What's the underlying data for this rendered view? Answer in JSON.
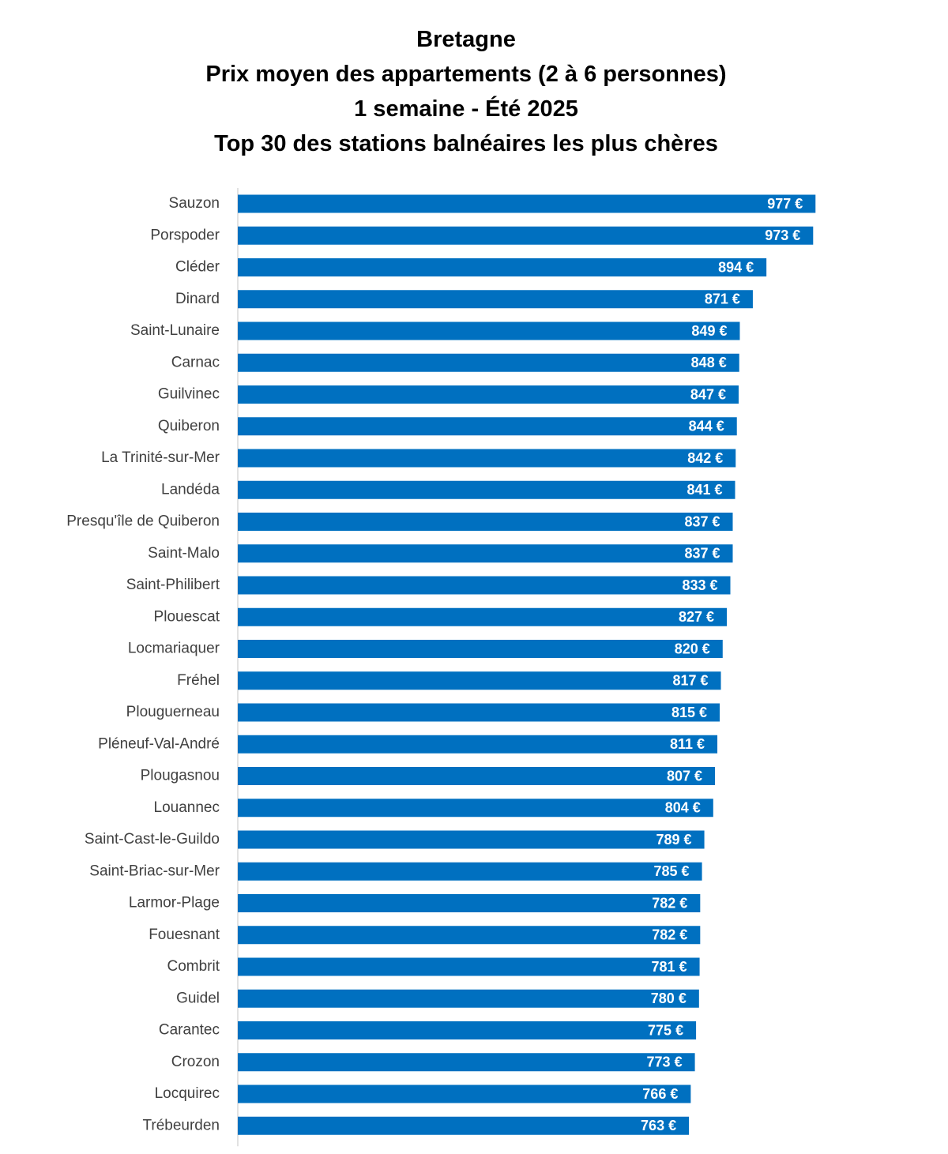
{
  "chart_data": {
    "type": "bar",
    "orientation": "horizontal",
    "title_lines": [
      "Bretagne",
      "Prix moyen des appartements (2 à 6 personnes)",
      "1 semaine - Été 2025",
      "Top 30 des stations balnéaires les plus chères"
    ],
    "categories": [
      "Sauzon",
      "Porspoder",
      "Cléder",
      "Dinard",
      "Saint-Lunaire",
      "Carnac",
      "Guilvinec",
      "Quiberon",
      "La Trinité-sur-Mer",
      "Landéda",
      "Presqu'île de Quiberon",
      "Saint-Malo",
      "Saint-Philibert",
      "Plouescat",
      "Locmariaquer",
      "Fréhel",
      "Plouguerneau",
      "Pléneuf-Val-André",
      "Plougasnou",
      "Louannec",
      "Saint-Cast-le-Guildo",
      "Saint-Briac-sur-Mer",
      "Larmor-Plage",
      "Fouesnant",
      "Combrit",
      "Guidel",
      "Carantec",
      "Crozon",
      "Locquirec",
      "Trébeurden"
    ],
    "values": [
      977,
      973,
      894,
      871,
      849,
      848,
      847,
      844,
      842,
      841,
      837,
      837,
      833,
      827,
      820,
      817,
      815,
      811,
      807,
      804,
      789,
      785,
      782,
      782,
      781,
      780,
      775,
      773,
      766,
      763
    ],
    "value_labels": [
      "977 €",
      "973 €",
      "894 €",
      "871 €",
      "849 €",
      "848 €",
      "847 €",
      "844 €",
      "842 €",
      "841 €",
      "837 €",
      "837 €",
      "833 €",
      "827 €",
      "820 €",
      "817 €",
      "815 €",
      "811 €",
      "807 €",
      "804 €",
      "789 €",
      "785 €",
      "782 €",
      "782 €",
      "781 €",
      "780 €",
      "775 €",
      "773 €",
      "766 €",
      "763 €"
    ],
    "unit": "€",
    "xlim": [
      0,
      1000
    ],
    "grid": false,
    "bar_color": "#0070C0",
    "value_label_color": "#FFFFFF",
    "category_label_color": "#404040",
    "axis_line_color": "#D9D9D9"
  }
}
